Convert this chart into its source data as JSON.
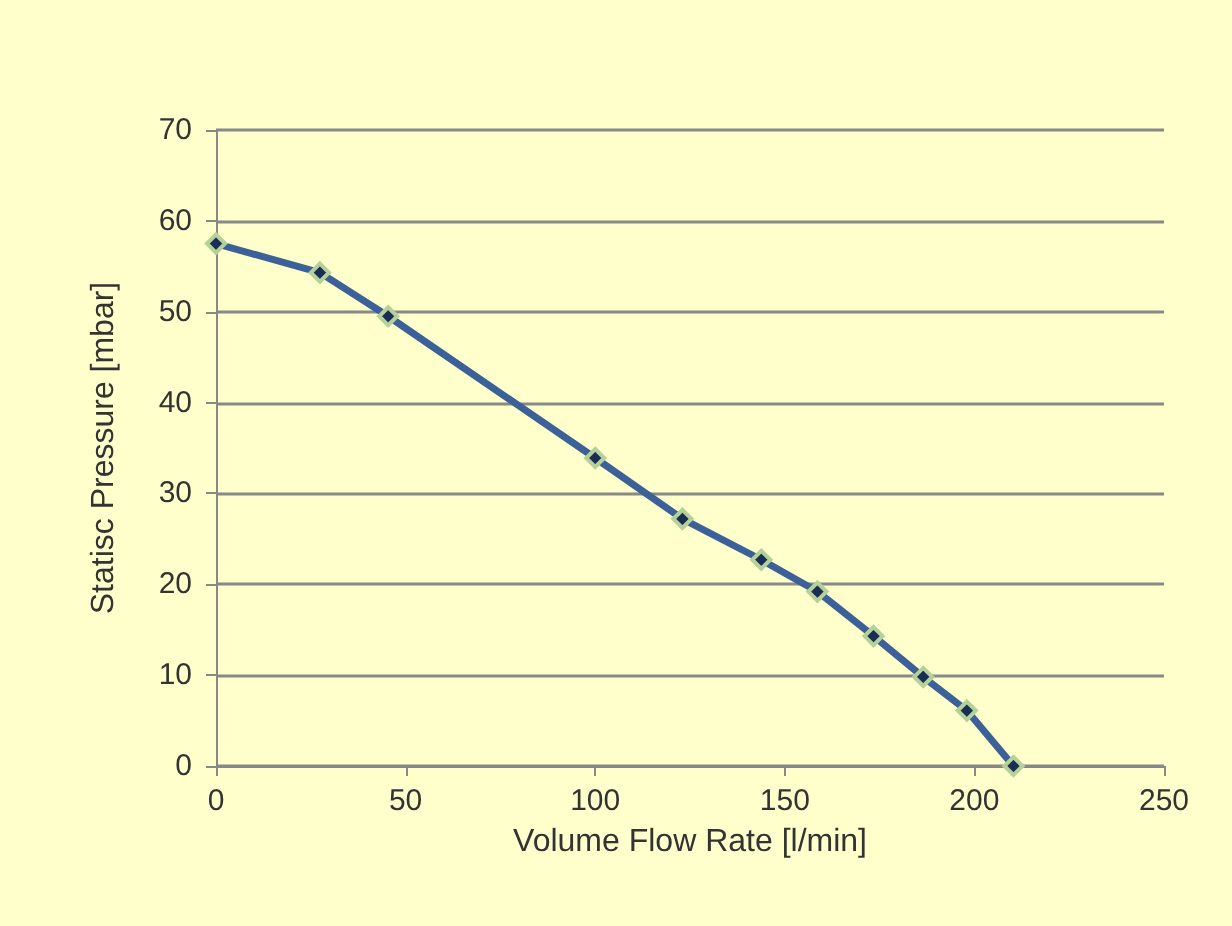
{
  "chart_data": {
    "type": "line",
    "xlabel": "Volume Flow Rate [l/min]",
    "ylabel": "Statisc Pressure [mbar]",
    "x": [
      0,
      27.4,
      45.4,
      100,
      123,
      143.8,
      158.6,
      173.4,
      186.5,
      198,
      210.3
    ],
    "series": [
      {
        "color": "#3c6098",
        "values": [
          57.5,
          54.3,
          49.5,
          33.9,
          27.2,
          22.7,
          19.2,
          14.3,
          9.8,
          6.1,
          0
        ]
      }
    ],
    "xlim": [
      0,
      250
    ],
    "xticks": [
      0,
      50,
      100,
      150,
      200,
      250
    ],
    "ylim": [
      0,
      70
    ],
    "yticks": [
      0,
      10,
      20,
      30,
      40,
      50,
      60,
      70
    ],
    "grid": "y",
    "marker": "diamond"
  }
}
